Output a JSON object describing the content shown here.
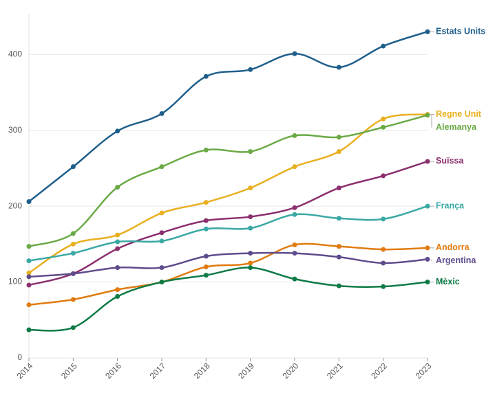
{
  "chart_data": {
    "type": "line",
    "x": [
      2014,
      2015,
      2016,
      2017,
      2018,
      2019,
      2020,
      2021,
      2022,
      2023
    ],
    "xlim": [
      2014,
      2023
    ],
    "xticks": [
      2014,
      2015,
      2016,
      2017,
      2018,
      2019,
      2020,
      2021,
      2022,
      2023
    ],
    "ylim": [
      0,
      450
    ],
    "yticks": [
      0,
      100,
      200,
      300,
      400
    ],
    "grid": true,
    "series": [
      {
        "name": "Estats Units",
        "color": "#1f5f8b",
        "values": [
          206,
          252,
          299,
          322,
          371,
          380,
          401,
          383,
          411,
          430
        ]
      },
      {
        "name": "Regne Unit",
        "color": "#e8b020",
        "values": [
          112,
          150,
          162,
          191,
          205,
          224,
          252,
          272,
          315,
          321
        ]
      },
      {
        "name": "Alemanya",
        "color": "#6aaa45",
        "values": [
          147,
          164,
          225,
          252,
          274,
          272,
          293,
          291,
          304,
          320
        ]
      },
      {
        "name": "Suïssa",
        "color": "#8b2f6e",
        "values": [
          96,
          111,
          144,
          165,
          181,
          186,
          198,
          224,
          240,
          259
        ]
      },
      {
        "name": "França",
        "color": "#3aa8a4",
        "values": [
          128,
          138,
          153,
          154,
          170,
          171,
          189,
          184,
          183,
          200
        ]
      },
      {
        "name": "Andorra",
        "color": "#e07b10",
        "values": [
          70,
          77,
          90,
          100,
          120,
          125,
          149,
          147,
          143,
          145
        ]
      },
      {
        "name": "Argentina",
        "color": "#5e4b8b",
        "values": [
          107,
          111,
          119,
          119,
          134,
          138,
          138,
          133,
          125,
          130
        ]
      },
      {
        "name": "Mèxic",
        "color": "#0e7a45",
        "values": [
          37,
          40,
          81,
          100,
          109,
          119,
          104,
          95,
          94,
          100
        ]
      }
    ]
  }
}
